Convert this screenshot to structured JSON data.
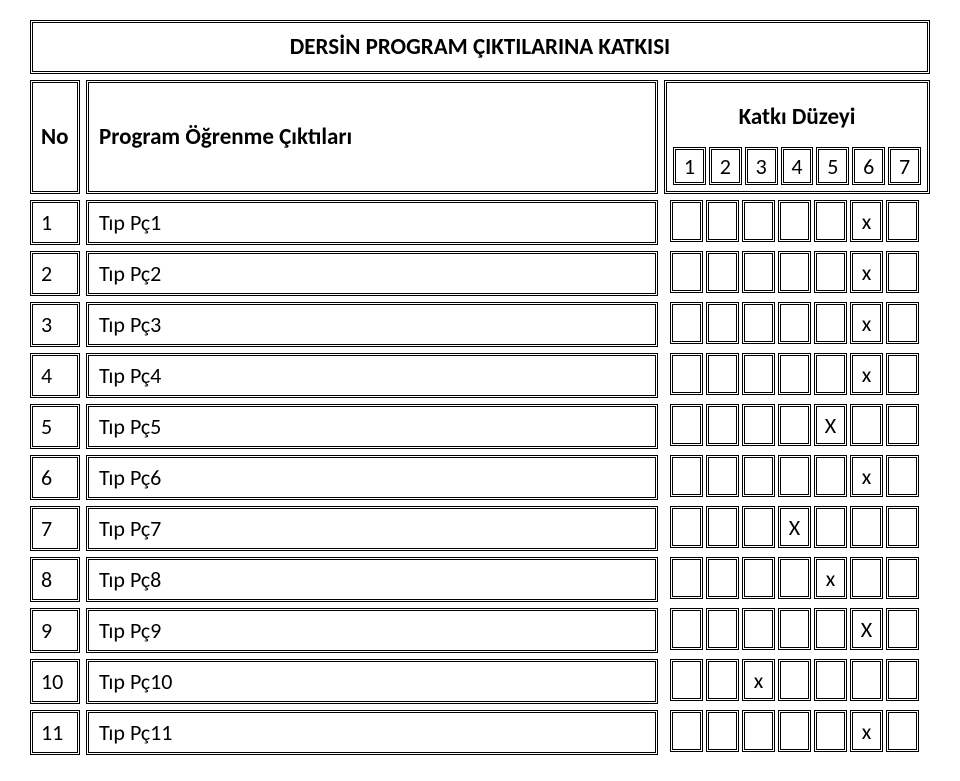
{
  "title": "DERSİN PROGRAM ÇIKTILARINA KATKISI",
  "headers": {
    "no": "No",
    "program": "Program Öğrenme Çıktıları",
    "katki": "Katkı Düzeyi",
    "nums": [
      "1",
      "2",
      "3",
      "4",
      "5",
      "6",
      "7"
    ]
  },
  "rows": [
    {
      "no": "1",
      "text": "Tıp Pç1",
      "marks": [
        "",
        "",
        "",
        "",
        "",
        "x",
        ""
      ]
    },
    {
      "no": "2",
      "text": "Tıp Pç2",
      "marks": [
        "",
        "",
        "",
        "",
        "",
        "x",
        ""
      ]
    },
    {
      "no": "3",
      "text": "Tıp Pç3",
      "marks": [
        "",
        "",
        "",
        "",
        "",
        "x",
        ""
      ]
    },
    {
      "no": "4",
      "text": "Tıp Pç4",
      "marks": [
        "",
        "",
        "",
        "",
        "",
        "x",
        ""
      ]
    },
    {
      "no": "5",
      "text": "Tıp Pç5",
      "marks": [
        "",
        "",
        "",
        "",
        "X",
        "",
        ""
      ]
    },
    {
      "no": "6",
      "text": "Tıp Pç6",
      "marks": [
        "",
        "",
        "",
        "",
        "",
        "x",
        ""
      ]
    },
    {
      "no": "7",
      "text": "Tıp Pç7",
      "marks": [
        "",
        "",
        "",
        "X",
        "",
        "",
        ""
      ]
    },
    {
      "no": "8",
      "text": "Tıp Pç8",
      "marks": [
        "",
        "",
        "",
        "",
        "x",
        "",
        ""
      ]
    },
    {
      "no": "9",
      "text": "Tıp Pç9",
      "marks": [
        "",
        "",
        "",
        "",
        "",
        "X",
        ""
      ]
    },
    {
      "no": "10",
      "text": "Tıp Pç10",
      "marks": [
        "",
        "",
        "x",
        "",
        "",
        "",
        ""
      ]
    },
    {
      "no": "11",
      "text": "Tıp Pç11",
      "marks": [
        "",
        "",
        "",
        "",
        "",
        "x",
        ""
      ]
    }
  ]
}
